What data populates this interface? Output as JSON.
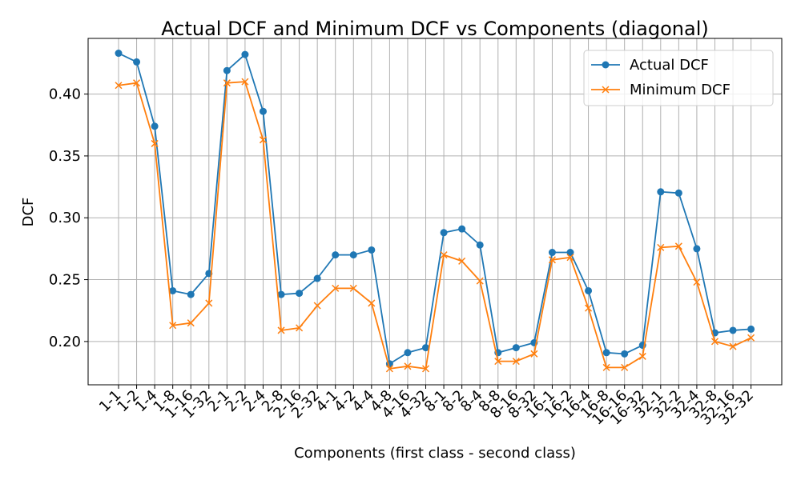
{
  "chart_data": {
    "type": "line",
    "title": "Actual DCF and Minimum DCF vs Components (diagonal)",
    "xlabel": "Components (first class - second class)",
    "ylabel": "DCF",
    "ylim": [
      0.165,
      0.445
    ],
    "yticks": [
      "0.20",
      "0.25",
      "0.30",
      "0.35",
      "0.40"
    ],
    "grid": true,
    "legend_position": "top-right",
    "categories": [
      "1-1",
      "1-2",
      "1-4",
      "1-8",
      "1-16",
      "1-32",
      "2-1",
      "2-2",
      "2-4",
      "2-8",
      "2-16",
      "2-32",
      "4-1",
      "4-2",
      "4-4",
      "4-8",
      "4-16",
      "4-32",
      "8-1",
      "8-2",
      "8-4",
      "8-8",
      "8-16",
      "8-32",
      "16-1",
      "16-2",
      "16-4",
      "16-8",
      "16-16",
      "16-32",
      "32-1",
      "32-2",
      "32-4",
      "32-8",
      "32-16",
      "32-32"
    ],
    "series": [
      {
        "name": "Actual DCF",
        "color": "#1f77b4",
        "marker": "circle",
        "values": [
          0.433,
          0.426,
          0.374,
          0.241,
          0.238,
          0.255,
          0.419,
          0.432,
          0.386,
          0.238,
          0.239,
          0.251,
          0.27,
          0.27,
          0.274,
          0.182,
          0.191,
          0.195,
          0.288,
          0.291,
          0.278,
          0.191,
          0.195,
          0.199,
          0.272,
          0.272,
          0.241,
          0.191,
          0.19,
          0.197,
          0.321,
          0.32,
          0.275,
          0.207,
          0.209,
          0.21
        ]
      },
      {
        "name": "Minimum DCF",
        "color": "#ff7f0e",
        "marker": "x",
        "values": [
          0.407,
          0.409,
          0.36,
          0.213,
          0.215,
          0.231,
          0.409,
          0.41,
          0.363,
          0.209,
          0.211,
          0.229,
          0.243,
          0.243,
          0.231,
          0.178,
          0.18,
          0.178,
          0.27,
          0.265,
          0.249,
          0.184,
          0.184,
          0.19,
          0.266,
          0.268,
          0.227,
          0.179,
          0.179,
          0.188,
          0.276,
          0.277,
          0.248,
          0.2,
          0.196,
          0.203
        ]
      }
    ]
  }
}
